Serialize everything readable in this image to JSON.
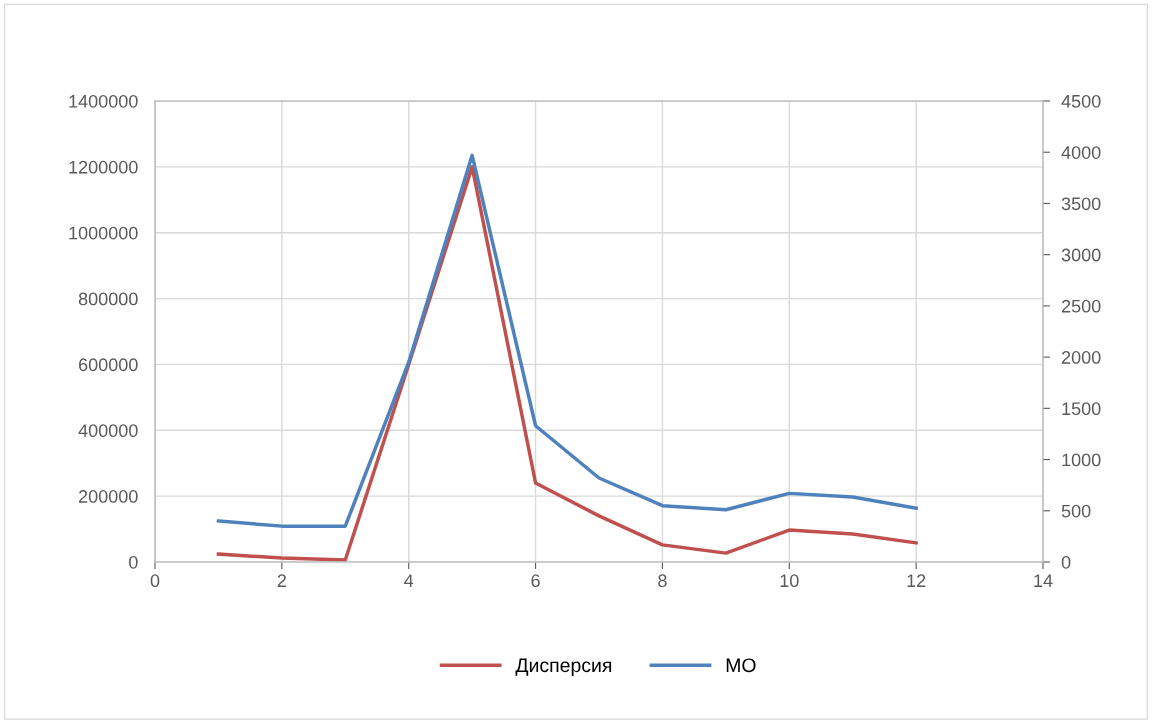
{
  "chart_data": {
    "type": "line",
    "x": [
      1,
      2,
      3,
      4,
      5,
      6,
      7,
      8,
      9,
      10,
      11,
      12
    ],
    "series": [
      {
        "name": "Дисперсия",
        "color": "#c0504d",
        "values": [
          24000,
          12000,
          6000,
          600000,
          1200000,
          240000,
          140000,
          52000,
          27000,
          97000,
          85000,
          58000
        ]
      },
      {
        "name": "МО",
        "color": "#4f81bd",
        "axis": "y2",
        "values": [
          400,
          350,
          350,
          1950,
          3970,
          1330,
          820,
          550,
          510,
          670,
          635,
          525
        ]
      }
    ],
    "xlim": [
      0,
      14
    ],
    "xticks": [
      0,
      2,
      4,
      6,
      8,
      10,
      12,
      14
    ],
    "ylim": [
      0,
      1400000
    ],
    "yticks": [
      0,
      200000,
      400000,
      600000,
      800000,
      1000000,
      1200000,
      1400000
    ],
    "y2lim": [
      0,
      4500
    ],
    "y2ticks": [
      0,
      500,
      1000,
      1500,
      2000,
      2500,
      3000,
      3500,
      4000,
      4500
    ],
    "grid": true,
    "legend": "bottom",
    "marker": "none",
    "line_style": "solid"
  }
}
